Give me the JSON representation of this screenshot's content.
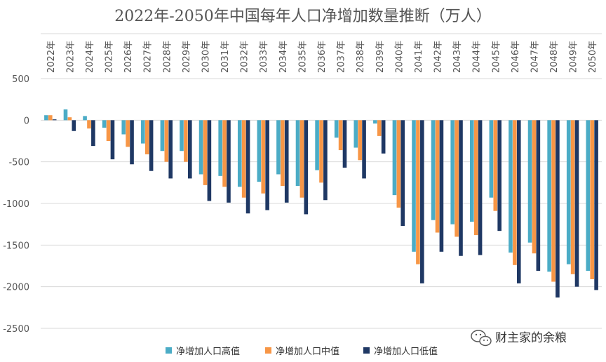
{
  "chart_data": {
    "type": "bar",
    "title": "2022年-2050年中国每年人口净增加数量推断（万人）",
    "xlabel": "",
    "ylabel": "",
    "ylim": [
      -2500,
      500
    ],
    "yticks": [
      "500",
      "0",
      "-500",
      "-1000",
      "-1500",
      "-2000",
      "-2500"
    ],
    "ytick_values": [
      500,
      0,
      -500,
      -1000,
      -1500,
      -2000,
      -2500
    ],
    "grid": true,
    "legend_position": "bottom",
    "categories": [
      "2022年",
      "2023年",
      "2024年",
      "2025年",
      "2026年",
      "2027年",
      "2028年",
      "2029年",
      "2030年",
      "2031年",
      "2032年",
      "2033年",
      "2034年",
      "2035年",
      "2036年",
      "2037年",
      "2038年",
      "2039年",
      "2040年",
      "2041年",
      "2042年",
      "2043年",
      "2044年",
      "2045年",
      "2046年",
      "2047年",
      "2048年",
      "2049年",
      "2050年"
    ],
    "series": [
      {
        "name": "净增加人口高值",
        "color": "#4BACC6",
        "values": [
          60,
          130,
          50,
          -90,
          -170,
          -280,
          -370,
          -370,
          -650,
          -670,
          -800,
          -740,
          -650,
          -790,
          -600,
          -210,
          -330,
          -40,
          -900,
          -1580,
          -1200,
          -1250,
          -1220,
          -930,
          -1590,
          -1470,
          -1820,
          -1730,
          -1810
        ]
      },
      {
        "name": "净增加人口中值",
        "color": "#F79646",
        "values": [
          60,
          35,
          -100,
          -250,
          -320,
          -410,
          -500,
          -500,
          -780,
          -800,
          -930,
          -880,
          -790,
          -930,
          -750,
          -360,
          -480,
          -190,
          -1050,
          -1730,
          -1350,
          -1400,
          -1380,
          -1090,
          -1740,
          -1600,
          -1940,
          -1850,
          -1910
        ]
      },
      {
        "name": "净增加人口低值",
        "color": "#1F3864",
        "values": [
          10,
          -130,
          -310,
          -470,
          -530,
          -610,
          -700,
          -700,
          -970,
          -990,
          -1120,
          -1080,
          -990,
          -1130,
          -960,
          -570,
          -700,
          -400,
          -1270,
          -1960,
          -1580,
          -1630,
          -1620,
          -1330,
          -1960,
          -1810,
          -2130,
          -2000,
          -2040
        ]
      }
    ]
  },
  "watermark": {
    "text": "财主家的余粮",
    "icon": "wechat-icon"
  }
}
